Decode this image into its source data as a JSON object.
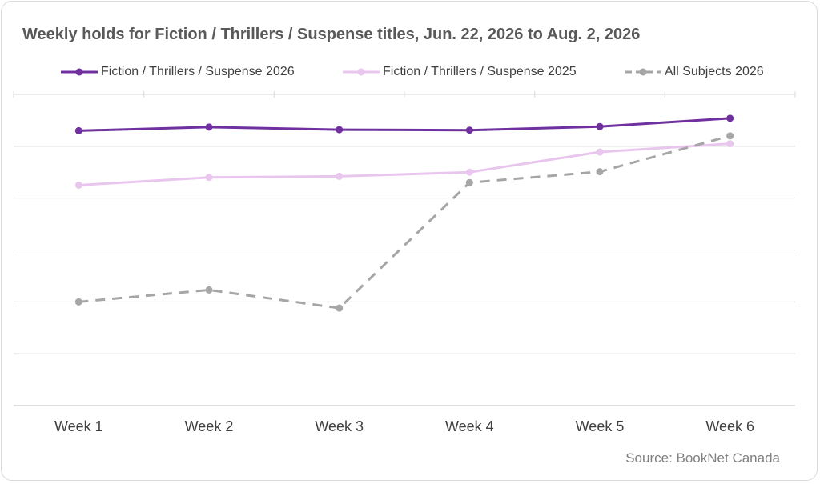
{
  "title": "Weekly holds for Fiction / Thrillers / Suspense titles, Jun. 22, 2026 to Aug. 2, 2026",
  "source": "Source: BookNet Canada",
  "chart_data": {
    "type": "line",
    "title": "Weekly holds for Fiction / Thrillers / Suspense titles, Jun. 22, 2026 to Aug. 2, 2026",
    "categories": [
      "Week 1",
      "Week 2",
      "Week 3",
      "Week 4",
      "Week 5",
      "Week 6"
    ],
    "xlabel": "",
    "ylabel": "",
    "ylim": [
      0,
      6
    ],
    "y_tick_labels_shown": false,
    "grid": true,
    "legend_position": "top",
    "series": [
      {
        "name": "Fiction / Thrillers / Suspense 2026",
        "color": "#7030a0",
        "style": "solid",
        "values": [
          5.3,
          5.37,
          5.32,
          5.31,
          5.38,
          5.54
        ]
      },
      {
        "name": "Fiction / Thrillers / Suspense 2025",
        "color": "#e9c6ee",
        "style": "solid",
        "values": [
          4.25,
          4.4,
          4.42,
          4.5,
          4.89,
          5.05
        ]
      },
      {
        "name": "All Subjects 2026",
        "color": "#a6a6a6",
        "style": "dashed",
        "values": [
          2.0,
          2.23,
          1.88,
          4.3,
          4.51,
          5.2
        ]
      }
    ]
  }
}
